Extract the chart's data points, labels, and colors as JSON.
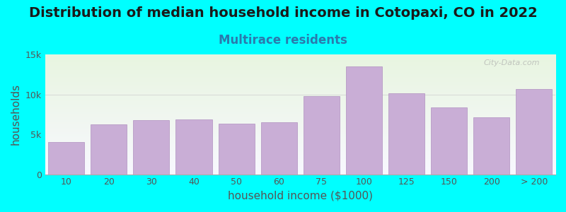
{
  "title": "Distribution of median household income in Cotopaxi, CO in 2022",
  "subtitle": "Multirace residents",
  "xlabel": "household income ($1000)",
  "ylabel": "households",
  "background_color": "#00FFFF",
  "plot_bg_gradient_top": "#e8f5e0",
  "plot_bg_gradient_bottom": "#f8f8ff",
  "bar_color": "#c9aed6",
  "bar_edge_color": "#b090c0",
  "categories": [
    "10",
    "20",
    "30",
    "40",
    "50",
    "60",
    "75",
    "100",
    "125",
    "150",
    "200",
    "> 200"
  ],
  "values": [
    4000,
    6200,
    6800,
    6900,
    6300,
    6500,
    9800,
    13500,
    10100,
    8400,
    7100,
    10700
  ],
  "ylim": [
    0,
    15000
  ],
  "yticks": [
    0,
    5000,
    10000,
    15000
  ],
  "ytick_labels": [
    "0",
    "5k",
    "10k",
    "15k"
  ],
  "title_fontsize": 14,
  "subtitle_fontsize": 12,
  "axis_label_fontsize": 11,
  "tick_fontsize": 9,
  "title_color": "#1a1a1a",
  "subtitle_color": "#2a7aad",
  "axis_label_color": "#555555",
  "tick_color": "#555555",
  "watermark_text": "City-Data.com"
}
